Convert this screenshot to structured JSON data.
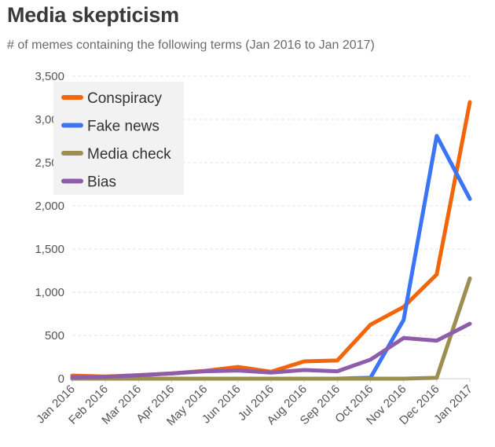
{
  "chart_data": {
    "type": "line",
    "title": "Media skepticism",
    "subtitle": "# of memes containing the following terms (Jan 2016 to Jan 2017)",
    "xlabel": "",
    "ylabel": "",
    "categories": [
      "Jan 2016",
      "Feb 2016",
      "Mar 2016",
      "Apr 2016",
      "May 2016",
      "Jun 2016",
      "Jul 2016",
      "Aug 2016",
      "Sep 2016",
      "Oct 2016",
      "Nov 2016",
      "Dec 2016",
      "Jan 2017"
    ],
    "ylim": [
      0,
      3500
    ],
    "yticks": [
      0,
      500,
      1000,
      1500,
      2000,
      2500,
      3000,
      3500
    ],
    "ytick_labels": [
      "0",
      "500",
      "1,000",
      "1,500",
      "2,000",
      "2,500",
      "3,000",
      "3,500"
    ],
    "grid": true,
    "legend_position": "top-left",
    "series": [
      {
        "name": "Conspiracy",
        "color": "#f2650a",
        "values": [
          35,
          25,
          40,
          60,
          90,
          135,
          80,
          200,
          210,
          625,
          830,
          1205,
          3200
        ]
      },
      {
        "name": "Fake news",
        "color": "#3b74f5",
        "values": [
          0,
          0,
          0,
          0,
          0,
          0,
          0,
          0,
          0,
          10,
          680,
          2810,
          2080
        ]
      },
      {
        "name": "Media check",
        "color": "#9a8f4f",
        "values": [
          0,
          0,
          0,
          0,
          0,
          0,
          0,
          0,
          0,
          0,
          0,
          10,
          1160
        ]
      },
      {
        "name": "Bias",
        "color": "#8e5cab",
        "values": [
          15,
          20,
          40,
          60,
          85,
          95,
          70,
          100,
          85,
          220,
          470,
          440,
          635
        ]
      }
    ]
  }
}
